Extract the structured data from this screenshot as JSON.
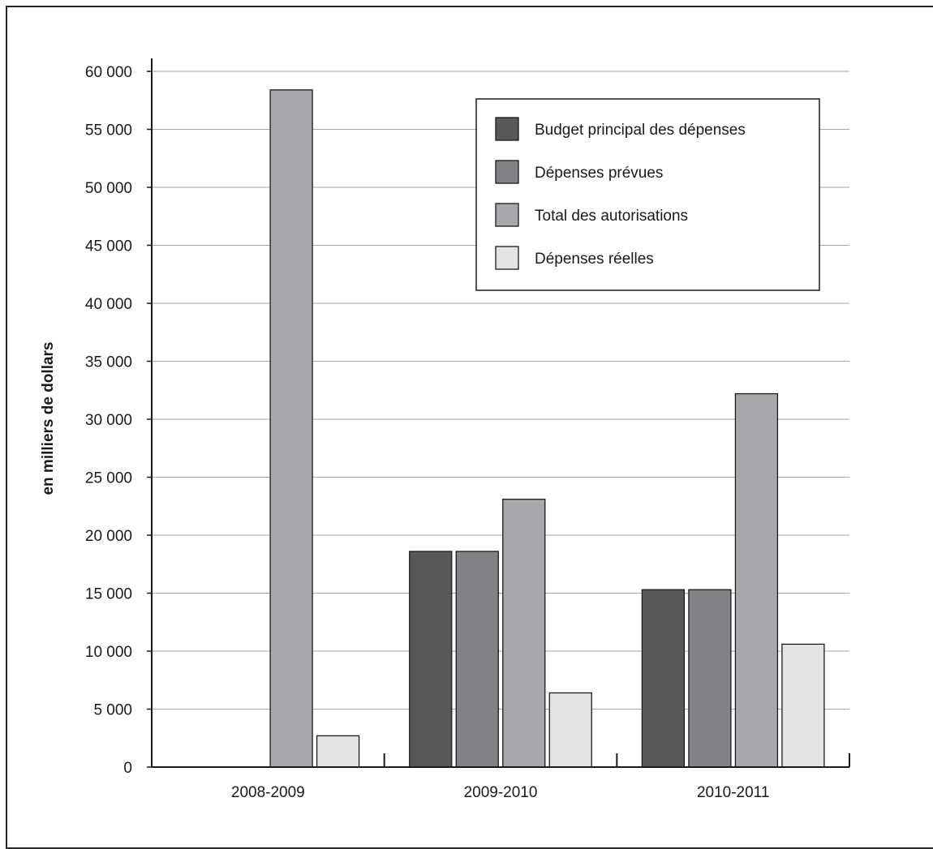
{
  "chart_data": {
    "type": "bar",
    "title": "",
    "xlabel": "",
    "ylabel": "en milliers de dollars",
    "ylim": [
      0,
      60000
    ],
    "yticks": [
      0,
      5000,
      10000,
      15000,
      20000,
      25000,
      30000,
      35000,
      40000,
      45000,
      50000,
      55000,
      60000
    ],
    "ytick_labels": [
      "0",
      "5 000",
      "10 000",
      "15 000",
      "20 000",
      "25 000",
      "30 000",
      "35 000",
      "40 000",
      "45 000",
      "50 000",
      "55 000",
      "60 000"
    ],
    "categories": [
      "2008-2009",
      "2009-2010",
      "2010-2011"
    ],
    "grid": true,
    "legend_position": "top-right",
    "series": [
      {
        "name": "Budget principal des dépenses",
        "color": "#58585a",
        "values": [
          null,
          18600,
          15300
        ]
      },
      {
        "name": "Dépenses prévues",
        "color": "#818285",
        "values": [
          null,
          18600,
          15300
        ]
      },
      {
        "name": "Total des autorisations",
        "color": "#a7a8ab",
        "values": [
          58400,
          23100,
          32200
        ]
      },
      {
        "name": "Dépenses réelles",
        "color": "#e3e4e6",
        "values": [
          2700,
          6400,
          10600
        ]
      }
    ]
  }
}
